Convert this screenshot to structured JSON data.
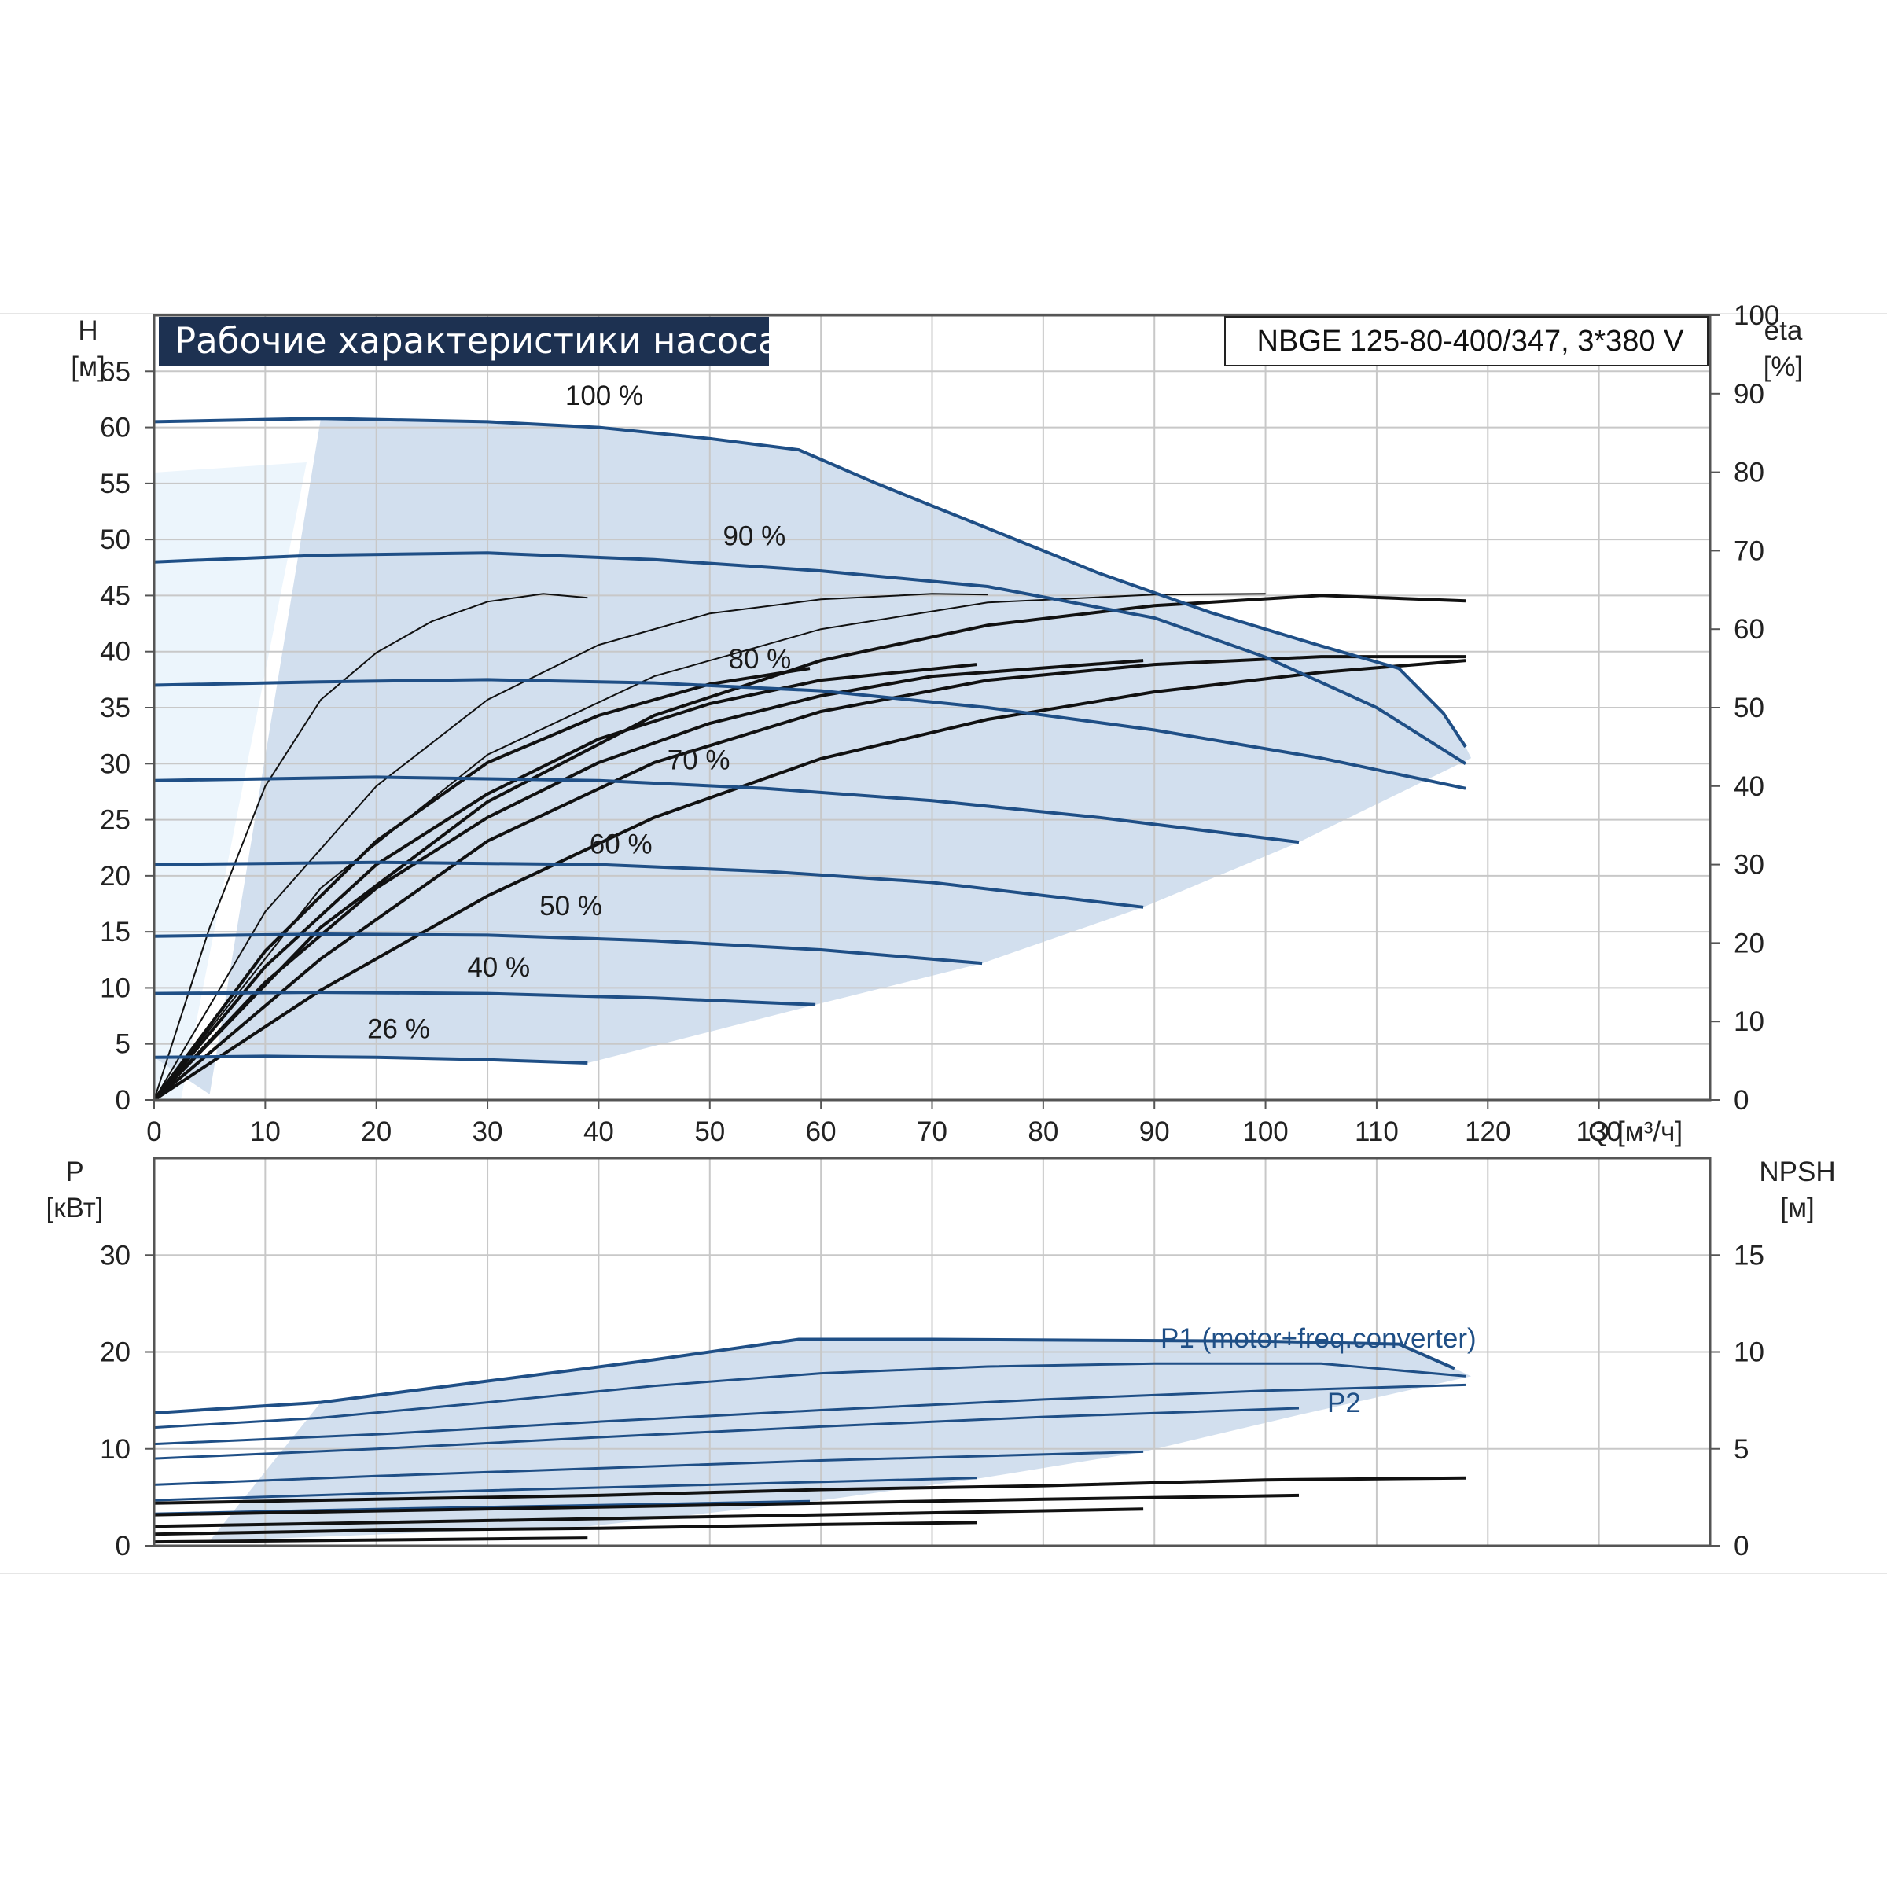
{
  "chart_data": [
    {
      "type": "line",
      "title": "Рабочие характеристики насоса",
      "model": "NBGE 125-80-400/347, 3*380 V",
      "xlabel": "Q [м³/ч]",
      "ylabel": [
        "H",
        "[м]"
      ],
      "y2label": [
        "eta",
        "[%]"
      ],
      "xlim": [
        0,
        140
      ],
      "ylim": [
        0,
        70
      ],
      "y2lim": [
        0,
        100
      ],
      "xticks": [
        "0",
        "10",
        "20",
        "30",
        "40",
        "50",
        "60",
        "70",
        "80",
        "90",
        "100",
        "110",
        "120",
        "130"
      ],
      "yticks": [
        "0",
        "5",
        "10",
        "15",
        "20",
        "25",
        "30",
        "35",
        "40",
        "45",
        "50",
        "55",
        "60",
        "65"
      ],
      "y2ticks": [
        "0",
        "10",
        "20",
        "30",
        "40",
        "50",
        "60",
        "70",
        "80",
        "90",
        "100"
      ],
      "grid": true,
      "colors": {
        "head": "#1f4f86",
        "eta": "#111111",
        "envelope": "#d2dfee",
        "lowflow": "#ecf5fc"
      },
      "head_curves": [
        {
          "name": "100 %",
          "x": [
            0,
            15,
            30,
            40,
            50,
            58,
            65,
            75,
            85,
            95,
            105,
            112,
            116,
            118
          ],
          "y": [
            60.5,
            60.8,
            60.5,
            60,
            59,
            58,
            55,
            51,
            47,
            43.5,
            40.5,
            38.5,
            34.5,
            31.5
          ]
        },
        {
          "name": "90 %",
          "x": [
            0,
            15,
            30,
            45,
            60,
            75,
            90,
            100,
            110,
            118
          ],
          "y": [
            48,
            48.6,
            48.8,
            48.2,
            47.2,
            45.8,
            43,
            39.5,
            35,
            30
          ]
        },
        {
          "name": "80 %",
          "x": [
            0,
            15,
            30,
            45,
            60,
            75,
            90,
            105,
            118
          ],
          "y": [
            37,
            37.3,
            37.5,
            37.2,
            36.5,
            35,
            33,
            30.5,
            27.8
          ]
        },
        {
          "name": "70 %",
          "x": [
            0,
            20,
            40,
            55,
            70,
            85,
            103
          ],
          "y": [
            28.5,
            28.8,
            28.5,
            27.8,
            26.7,
            25.2,
            23
          ]
        },
        {
          "name": "60 %",
          "x": [
            0,
            20,
            40,
            55,
            70,
            89
          ],
          "y": [
            21,
            21.2,
            21,
            20.4,
            19.4,
            17.2
          ]
        },
        {
          "name": "50 %",
          "x": [
            0,
            15,
            30,
            45,
            60,
            74.5
          ],
          "y": [
            14.6,
            14.8,
            14.7,
            14.2,
            13.4,
            12.2
          ]
        },
        {
          "name": "40 %",
          "x": [
            0,
            15,
            30,
            45,
            59.5
          ],
          "y": [
            9.5,
            9.6,
            9.5,
            9.1,
            8.5
          ]
        },
        {
          "name": "26 %",
          "x": [
            0,
            10,
            20,
            30,
            39
          ],
          "y": [
            3.8,
            3.9,
            3.8,
            3.6,
            3.3
          ]
        }
      ],
      "eta_curves": [
        {
          "x": [
            0,
            5,
            10,
            15,
            20,
            25,
            30,
            35,
            39
          ],
          "y": [
            0,
            22,
            40,
            51,
            57,
            61,
            63.5,
            64.5,
            64
          ]
        },
        {
          "x": [
            0,
            10,
            20,
            30,
            40,
            50,
            60,
            70,
            75
          ],
          "y": [
            0,
            24,
            40,
            51,
            58,
            62,
            63.8,
            64.5,
            64.4
          ]
        },
        {
          "x": [
            0,
            15,
            30,
            45,
            60,
            75,
            90,
            100
          ],
          "y": [
            0,
            27,
            44,
            54,
            60,
            63.4,
            64.4,
            64.5
          ]
        },
        {
          "x": [
            0,
            15,
            30,
            45,
            60,
            75,
            90,
            105,
            118
          ],
          "y": [
            0,
            22,
            38,
            49,
            56,
            60.5,
            63,
            64.3,
            63.6
          ]
        },
        {
          "x": [
            0,
            10,
            20,
            30,
            40,
            50,
            60,
            70,
            89
          ],
          "y": [
            0,
            15,
            27,
            36,
            43,
            48,
            51.5,
            54,
            56
          ]
        },
        {
          "x": [
            0,
            10,
            20,
            30,
            40,
            50,
            60,
            74
          ],
          "y": [
            0,
            17,
            30,
            39,
            46,
            50.5,
            53.5,
            55.5
          ]
        },
        {
          "x": [
            0,
            10,
            20,
            30,
            40,
            50,
            59
          ],
          "y": [
            0,
            19,
            33,
            43,
            49,
            53,
            55
          ]
        },
        {
          "x": [
            0,
            15,
            30,
            45,
            60,
            75,
            90,
            105,
            118
          ],
          "y": [
            0,
            18,
            33,
            43,
            49.5,
            53.5,
            55.5,
            56.5,
            56.5
          ]
        },
        {
          "x": [
            0,
            15,
            30,
            45,
            60,
            75,
            90,
            105,
            118
          ],
          "y": [
            0,
            14,
            26,
            36,
            43.5,
            48.5,
            52,
            54.5,
            56
          ]
        }
      ],
      "labels": [
        "100 %",
        "90 %",
        "80 %",
        "70 %",
        "60 %",
        "50 %",
        "40 %",
        "26 %"
      ]
    },
    {
      "type": "line",
      "ylabel": [
        "P",
        "[кВт]"
      ],
      "y2label": [
        "NPSH",
        "[м]"
      ],
      "xlim": [
        0,
        140
      ],
      "ylim": [
        0,
        40
      ],
      "y2lim": [
        0,
        20
      ],
      "yticks": [
        "0",
        "10",
        "20",
        "30"
      ],
      "y2ticks": [
        "0",
        "5",
        "10",
        "15"
      ],
      "grid": true,
      "series_labels": {
        "p1": "P1 (motor+freq.converter)",
        "p2": "P2"
      },
      "p1_curves": [
        {
          "x": [
            0,
            15,
            30,
            45,
            58,
            70,
            85,
            100,
            112,
            117
          ],
          "y": [
            13.7,
            14.8,
            17,
            19.2,
            21.3,
            21.3,
            21.2,
            21.1,
            20.8,
            18.3
          ]
        },
        {
          "x": [
            0,
            15,
            30,
            45,
            60,
            75,
            90,
            105,
            118
          ],
          "y": [
            12.2,
            13.2,
            14.8,
            16.5,
            17.8,
            18.5,
            18.8,
            18.8,
            17.5
          ]
        },
        {
          "x": [
            0,
            20,
            40,
            60,
            80,
            103
          ],
          "y": [
            9,
            10,
            11.2,
            12.3,
            13.3,
            14.2
          ]
        },
        {
          "x": [
            0,
            20,
            40,
            60,
            89
          ],
          "y": [
            6.3,
            7.2,
            8,
            8.8,
            9.7
          ]
        },
        {
          "x": [
            0,
            20,
            40,
            59
          ],
          "y": [
            3.3,
            3.8,
            4.2,
            4.6
          ]
        }
      ],
      "p2_curves": [
        {
          "x": [
            0,
            20,
            40,
            60,
            80,
            100,
            118
          ],
          "y": [
            10.5,
            11.5,
            12.8,
            14,
            15.1,
            16,
            16.6
          ]
        },
        {
          "x": [
            0,
            20,
            40,
            60,
            74
          ],
          "y": [
            4.7,
            5.4,
            6,
            6.6,
            7
          ]
        }
      ],
      "npsh_curves": [
        {
          "x": [
            0,
            20,
            40,
            60,
            80,
            100,
            118
          ],
          "y": [
            2.2,
            2.4,
            2.6,
            2.9,
            3.1,
            3.4,
            3.5
          ]
        },
        {
          "x": [
            0,
            20,
            40,
            60,
            80,
            103
          ],
          "y": [
            1.6,
            1.8,
            2,
            2.2,
            2.4,
            2.6
          ]
        },
        {
          "x": [
            0,
            20,
            40,
            60,
            89
          ],
          "y": [
            1,
            1.2,
            1.4,
            1.6,
            1.9
          ]
        },
        {
          "x": [
            0,
            20,
            40,
            60,
            74
          ],
          "y": [
            0.6,
            0.8,
            0.9,
            1.1,
            1.2
          ]
        },
        {
          "x": [
            0,
            20,
            39
          ],
          "y": [
            0.2,
            0.3,
            0.4
          ]
        }
      ]
    }
  ]
}
